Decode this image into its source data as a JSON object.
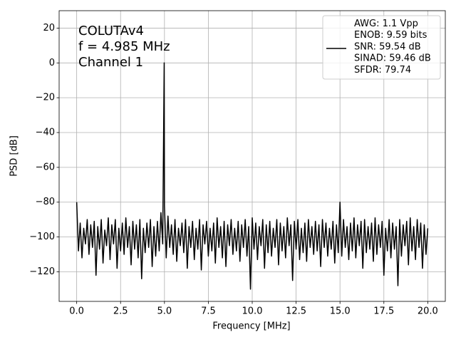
{
  "chart_data": {
    "type": "line",
    "xlabel": "Frequency [MHz]",
    "ylabel": "PSD [dB]",
    "annotation": [
      "COLUTAv4",
      "f = 4.985 MHz",
      "Channel 1"
    ],
    "xlim": [
      -1,
      21
    ],
    "ylim": [
      -137,
      30
    ],
    "xticks": [
      {
        "value": 0,
        "label": "0.0"
      },
      2.5,
      {
        "value": 5,
        "label": "5.0"
      },
      7.5,
      {
        "value": 10,
        "label": "10.0"
      },
      12.5,
      {
        "value": 15,
        "label": "15.0"
      },
      17.5,
      {
        "value": 20,
        "label": "20.0"
      }
    ],
    "yticks": [
      {
        "value": -120,
        "label": "−120"
      },
      {
        "value": -100,
        "label": "−100"
      },
      {
        "value": -80,
        "label": "−80"
      },
      {
        "value": -60,
        "label": "−60"
      },
      {
        "value": -40,
        "label": "−40"
      },
      {
        "value": -20,
        "label": "−20"
      },
      0,
      20
    ],
    "grid": true,
    "legend": "upper right",
    "x": [
      0,
      0.1,
      0.2,
      0.3,
      0.4,
      0.5,
      0.6,
      0.7,
      0.8,
      0.9,
      1,
      1.1,
      1.2,
      1.3,
      1.4,
      1.5,
      1.6,
      1.7,
      1.8,
      1.9,
      2,
      2.1,
      2.2,
      2.3,
      2.4,
      2.5,
      2.6,
      2.7,
      2.8,
      2.9,
      3,
      3.1,
      3.2,
      3.3,
      3.4,
      3.5,
      3.6,
      3.7,
      3.8,
      3.9,
      4,
      4.1,
      4.2,
      4.3,
      4.4,
      4.5,
      4.6,
      4.7,
      4.8,
      4.9,
      4.985,
      5,
      5.1,
      5.2,
      5.3,
      5.4,
      5.5,
      5.6,
      5.7,
      5.8,
      5.9,
      6,
      6.1,
      6.2,
      6.3,
      6.4,
      6.5,
      6.6,
      6.7,
      6.8,
      6.9,
      7,
      7.1,
      7.2,
      7.3,
      7.4,
      7.5,
      7.6,
      7.7,
      7.8,
      7.9,
      8,
      8.1,
      8.2,
      8.3,
      8.4,
      8.5,
      8.6,
      8.7,
      8.8,
      8.9,
      9,
      9.1,
      9.2,
      9.3,
      9.4,
      9.5,
      9.6,
      9.7,
      9.8,
      9.9,
      10,
      10.1,
      10.2,
      10.3,
      10.4,
      10.5,
      10.6,
      10.7,
      10.8,
      10.9,
      11,
      11.1,
      11.2,
      11.3,
      11.4,
      11.5,
      11.6,
      11.7,
      11.8,
      11.9,
      12,
      12.1,
      12.2,
      12.3,
      12.4,
      12.5,
      12.6,
      12.7,
      12.8,
      12.9,
      13,
      13.1,
      13.2,
      13.3,
      13.4,
      13.5,
      13.6,
      13.7,
      13.8,
      13.9,
      14,
      14.1,
      14.2,
      14.3,
      14.4,
      14.5,
      14.6,
      14.7,
      14.8,
      14.9,
      15,
      15.1,
      15.2,
      15.3,
      15.4,
      15.5,
      15.6,
      15.7,
      15.8,
      15.9,
      16,
      16.1,
      16.2,
      16.3,
      16.4,
      16.5,
      16.6,
      16.7,
      16.8,
      16.9,
      17,
      17.1,
      17.2,
      17.3,
      17.4,
      17.5,
      17.6,
      17.7,
      17.8,
      17.9,
      18,
      18.1,
      18.2,
      18.3,
      18.4,
      18.5,
      18.6,
      18.7,
      18.8,
      18.9,
      19,
      19.1,
      19.2,
      19.3,
      19.4,
      19.5,
      19.6,
      19.7,
      19.8,
      19.9,
      20
    ],
    "series": [
      {
        "name": "AWG: 1.1 Vpp\nENOB: 9.59 bits\nSNR: 59.54 dB\nSINAD: 59.46 dB\nSFDR: 79.74",
        "color": "#000000",
        "values": [
          -80,
          -108,
          -92,
          -112,
          -95,
          -104,
          -90,
          -110,
          -93,
          -106,
          -91,
          -122,
          -94,
          -107,
          -90,
          -115,
          -96,
          -105,
          -89,
          -113,
          -93,
          -104,
          -90,
          -118,
          -95,
          -108,
          -92,
          -110,
          -89,
          -106,
          -94,
          -116,
          -91,
          -107,
          -93,
          -112,
          -90,
          -124,
          -95,
          -109,
          -92,
          -106,
          -90,
          -117,
          -94,
          -111,
          -91,
          -108,
          -86,
          -104,
          0,
          -82,
          -112,
          -88,
          -106,
          -93,
          -110,
          -90,
          -114,
          -95,
          -105,
          -92,
          -109,
          -90,
          -118,
          -94,
          -106,
          -91,
          -113,
          -95,
          -107,
          -90,
          -119,
          -93,
          -104,
          -91,
          -111,
          -95,
          -108,
          -92,
          -115,
          -89,
          -106,
          -94,
          -112,
          -91,
          -117,
          -93,
          -105,
          -90,
          -110,
          -95,
          -108,
          -91,
          -114,
          -93,
          -106,
          -90,
          -111,
          -94,
          -130,
          -89,
          -107,
          -92,
          -113,
          -94,
          -105,
          -90,
          -118,
          -93,
          -109,
          -91,
          -111,
          -95,
          -106,
          -90,
          -116,
          -92,
          -108,
          -94,
          -112,
          -89,
          -105,
          -93,
          -125,
          -91,
          -107,
          -90,
          -113,
          -95,
          -109,
          -92,
          -114,
          -90,
          -106,
          -94,
          -110,
          -91,
          -108,
          -93,
          -117,
          -90,
          -106,
          -92,
          -111,
          -95,
          -107,
          -91,
          -115,
          -93,
          -109,
          -80,
          -111,
          -90,
          -106,
          -94,
          -113,
          -92,
          -108,
          -89,
          -112,
          -93,
          -105,
          -91,
          -118,
          -90,
          -109,
          -94,
          -107,
          -92,
          -114,
          -89,
          -110,
          -93,
          -106,
          -91,
          -122,
          -95,
          -108,
          -90,
          -112,
          -92,
          -107,
          -94,
          -128,
          -90,
          -111,
          -93,
          -105,
          -91,
          -116,
          -89,
          -108,
          -94,
          -113,
          -90,
          -106,
          -92,
          -118,
          -93,
          -110,
          -95
        ]
      }
    ]
  }
}
